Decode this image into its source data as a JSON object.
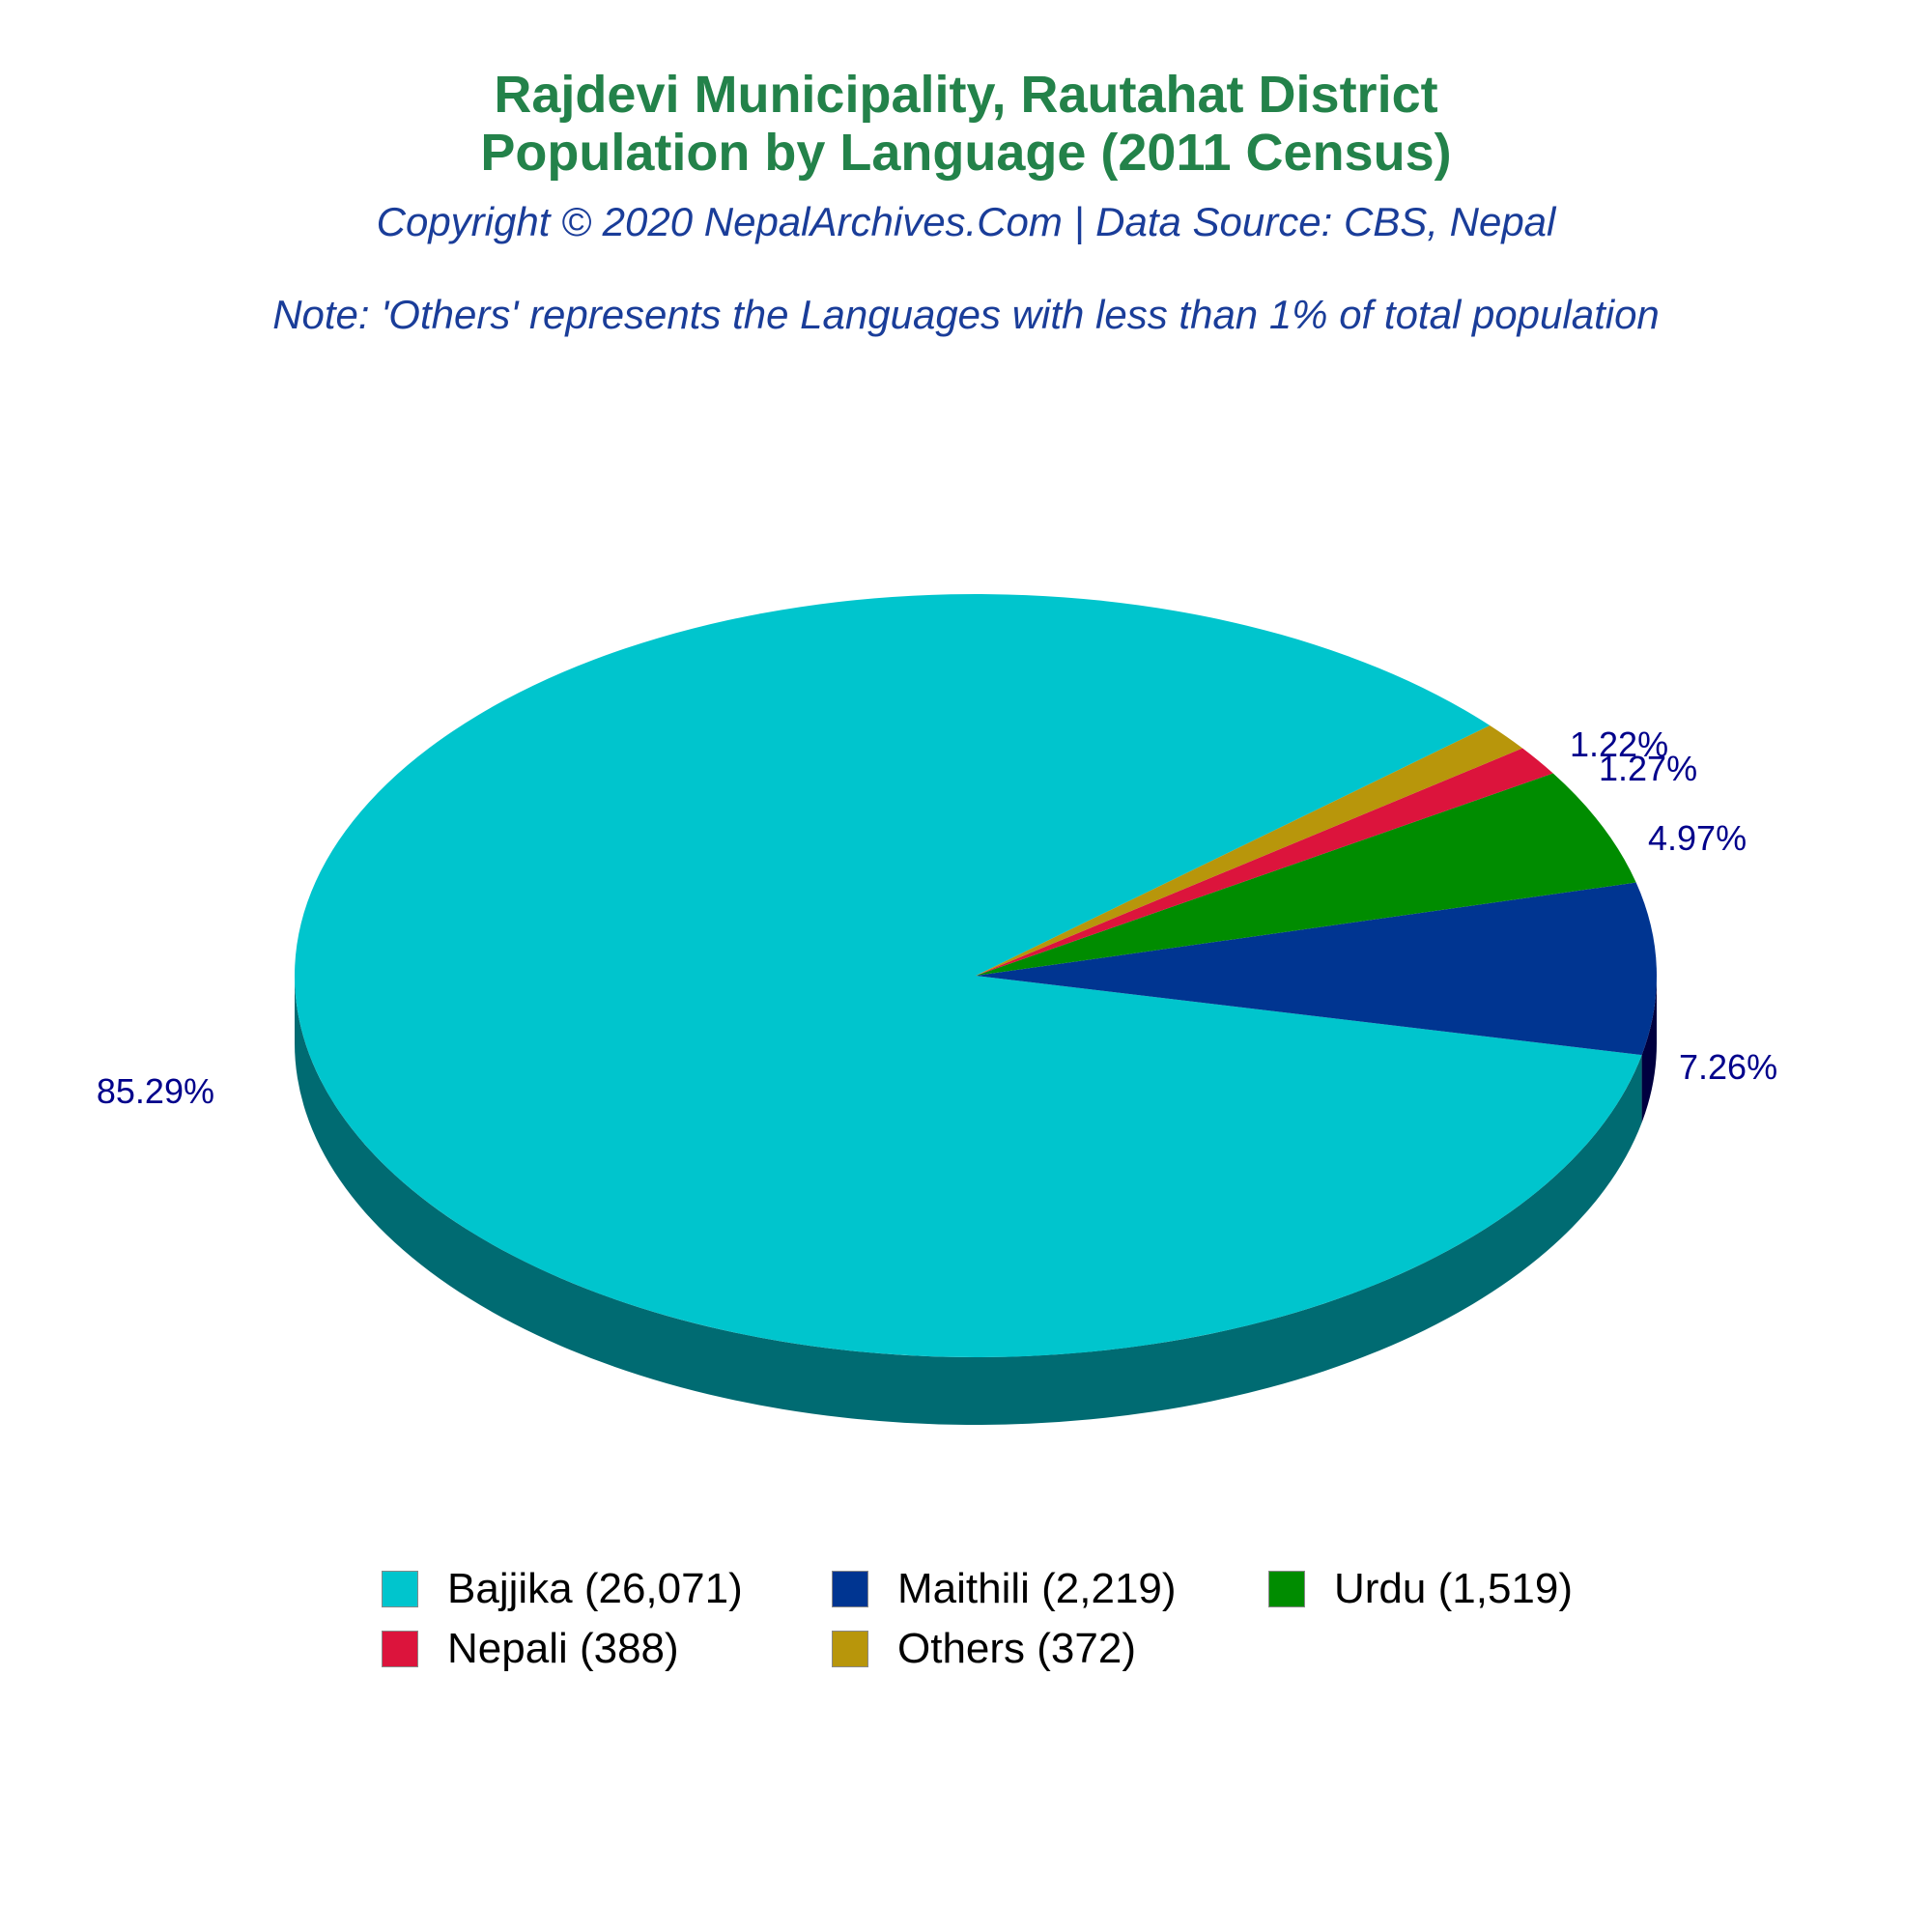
{
  "header": {
    "title_line1": "Rajdevi Municipality, Rautahat District",
    "title_line2": "Population by Language (2011 Census)",
    "copyright": "Copyright © 2020 NepalArchives.Com | Data Source: CBS, Nepal",
    "note": "Note: 'Others' represents the Languages with less than 1% of total population"
  },
  "chart_data": {
    "type": "pie",
    "style": "3d",
    "title": "Rajdevi Municipality, Rautahat District Population by Language (2011 Census)",
    "legend_position": "bottom",
    "slices": [
      {
        "name": "Bajjika",
        "value": 26071,
        "percent": "85.29%",
        "legend": "Bajjika (26,071)",
        "color": "#00c5cd",
        "side_color": "#006b72"
      },
      {
        "name": "Maithili",
        "value": 2219,
        "percent": "7.26%",
        "legend": "Maithili (2,219)",
        "color": "#003591",
        "side_color": "#00003f"
      },
      {
        "name": "Urdu",
        "value": 1519,
        "percent": "4.97%",
        "legend": "Urdu (1,519)",
        "color": "#008c00",
        "side_color": "#004a00"
      },
      {
        "name": "Nepali",
        "value": 388,
        "percent": "1.27%",
        "legend": "Nepali (388)",
        "color": "#dc143c",
        "side_color": "#7a0b21"
      },
      {
        "name": "Others",
        "value": 372,
        "percent": "1.22%",
        "legend": "Others (372)",
        "color": "#b8960b",
        "side_color": "#6b5606"
      }
    ]
  },
  "colors": {
    "title": "#23824a",
    "subtitle": "#1a3d99",
    "pct_label": "#00008b"
  }
}
